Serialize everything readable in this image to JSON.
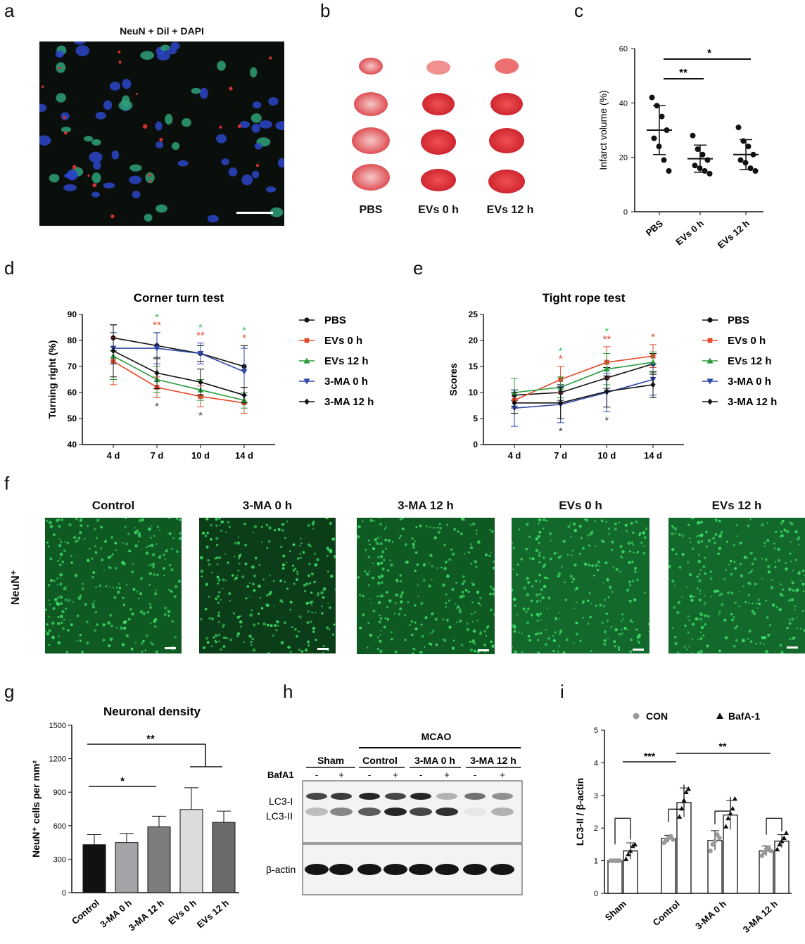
{
  "panels": {
    "a": {
      "label": "a",
      "title": "NeuN + Dil + DAPI"
    },
    "b": {
      "label": "b",
      "groups": [
        "PBS",
        "EVs 0 h",
        "EVs 12 h"
      ]
    },
    "c": {
      "label": "c"
    },
    "d": {
      "label": "d"
    },
    "e": {
      "label": "e"
    },
    "f": {
      "label": "f",
      "row_label": "NeuN⁺",
      "columns": [
        "Control",
        "3-MA 0 h",
        "3-MA 12 h",
        "EVs 0 h",
        "EVs 12 h"
      ]
    },
    "g": {
      "label": "g"
    },
    "h": {
      "label": "h",
      "mcao": "MCAO",
      "groups": [
        "Sham",
        "Control",
        "3-MA 0 h",
        "3-MA 12 h"
      ],
      "bafa1_label": "BafA1",
      "bafa1_signs": [
        "-",
        "+",
        "-",
        "+",
        "-",
        "+",
        "-",
        "+"
      ],
      "bands": [
        "LC3-I",
        "LC3-II",
        "β-actin"
      ]
    },
    "i": {
      "label": "i"
    }
  },
  "colors": {
    "PBS": "#111111",
    "EVs_0h": "#e2492a",
    "EVs_12h": "#2b9a3e",
    "MA_0h": "#2d47a6",
    "MA_12h": "#111111",
    "star_green": "#3bbf6e",
    "star_red": "#e2492a"
  },
  "chart_data": [
    {
      "id": "c",
      "type": "scatter",
      "ylabel": "Infarct volume (%)",
      "ylim": [
        0,
        60
      ],
      "yticks": [
        0,
        20,
        40,
        60
      ],
      "categories": [
        "PBS",
        "EVs 0 h",
        "EVs 12 h"
      ],
      "means": [
        30,
        19.5,
        21
      ],
      "sd": [
        9,
        5,
        5.5
      ],
      "points": [
        [
          42,
          39,
          35,
          30,
          27,
          24,
          19,
          15
        ],
        [
          28,
          23,
          21,
          19,
          17,
          16,
          15,
          14
        ],
        [
          31,
          26,
          24,
          21,
          19,
          18,
          16,
          15
        ]
      ],
      "annotations": [
        {
          "from": "PBS",
          "to": "EVs 0 h",
          "text": "**"
        },
        {
          "from": "PBS",
          "to": "EVs 12 h",
          "text": "*"
        }
      ]
    },
    {
      "id": "d",
      "type": "line",
      "title": "Corner turn test",
      "ylabel": "Turning right (%)",
      "ylim": [
        40,
        90
      ],
      "yticks": [
        40,
        50,
        60,
        70,
        80,
        90
      ],
      "x": [
        "4 d",
        "7 d",
        "10 d",
        "14 d"
      ],
      "series": [
        {
          "name": "PBS",
          "values": [
            81,
            78,
            75,
            70
          ],
          "err": [
            5,
            5,
            3,
            8
          ],
          "marker": "circle",
          "color": "#111111"
        },
        {
          "name": "EVs 0 h",
          "values": [
            72,
            62,
            58.5,
            56
          ],
          "err": [
            9,
            4,
            4,
            4
          ],
          "marker": "square",
          "color": "#e2492a"
        },
        {
          "name": "EVs 12 h",
          "values": [
            74,
            65,
            61,
            57
          ],
          "err": [
            9,
            5,
            4,
            3
          ],
          "marker": "triangle",
          "color": "#2b9a3e"
        },
        {
          "name": "3-MA 0 h",
          "values": [
            77,
            77,
            75,
            68
          ],
          "err": [
            6,
            6,
            4,
            9
          ],
          "marker": "tri-down",
          "color": "#2d47a6"
        },
        {
          "name": "3-MA 12 h",
          "values": [
            76,
            67.5,
            64,
            59
          ],
          "err": [
            10,
            6,
            5,
            3
          ],
          "marker": "diamond",
          "color": "#111111"
        }
      ],
      "annotations": [
        {
          "x": "7 d",
          "above": [
            {
              "text": "*",
              "color": "#3bbf6e"
            },
            {
              "text": "**",
              "color": "#e2492a"
            }
          ],
          "below": "*"
        },
        {
          "x": "10 d",
          "above": [
            {
              "text": "*",
              "color": "#3bbf6e"
            },
            {
              "text": "**",
              "color": "#e2492a"
            }
          ],
          "below": "*"
        },
        {
          "x": "14 d",
          "above": [
            {
              "text": "*",
              "color": "#3bbf6e"
            },
            {
              "text": "*",
              "color": "#e2492a"
            }
          ],
          "below": ""
        }
      ]
    },
    {
      "id": "e",
      "type": "line",
      "title": "Tight rope test",
      "ylabel": "Scores",
      "ylim": [
        0,
        25
      ],
      "yticks": [
        0,
        5,
        10,
        15,
        20,
        25
      ],
      "x": [
        "4 d",
        "7 d",
        "10 d",
        "14 d"
      ],
      "series": [
        {
          "name": "PBS",
          "values": [
            9.5,
            10,
            12.8,
            15.5
          ],
          "err": [
            1,
            1.5,
            2,
            2
          ],
          "marker": "circle",
          "color": "#111111"
        },
        {
          "name": "EVs 0 h",
          "values": [
            8.5,
            12.5,
            15.8,
            17
          ],
          "err": [
            1.5,
            2.5,
            3,
            2.2
          ],
          "marker": "square",
          "color": "#e2492a"
        },
        {
          "name": "EVs 12 h",
          "values": [
            10,
            11,
            14.5,
            15.8
          ],
          "err": [
            2.7,
            2,
            3,
            2
          ],
          "marker": "triangle",
          "color": "#2b9a3e"
        },
        {
          "name": "3-MA 0 h",
          "values": [
            7,
            7.7,
            10,
            12.5
          ],
          "err": [
            3.5,
            3.5,
            3.7,
            3
          ],
          "marker": "tri-down",
          "color": "#2d47a6"
        },
        {
          "name": "3-MA 12 h",
          "values": [
            8,
            8,
            10.2,
            11.5
          ],
          "err": [
            2,
            3,
            3,
            2.5
          ],
          "marker": "diamond",
          "color": "#111111"
        }
      ],
      "annotations": [
        {
          "x": "7 d",
          "above": [
            {
              "text": "*",
              "color": "#3bbf6e"
            },
            {
              "text": "*",
              "color": "#e2492a"
            }
          ],
          "below": "*"
        },
        {
          "x": "10 d",
          "above": [
            {
              "text": "*",
              "color": "#3bbf6e"
            },
            {
              "text": "**",
              "color": "#e2492a"
            }
          ],
          "below": "*"
        },
        {
          "x": "14 d",
          "above": [
            {
              "text": "*",
              "color": "#e2492a"
            }
          ],
          "below": ""
        }
      ]
    },
    {
      "id": "g",
      "type": "bar",
      "title": "Neuronal density",
      "ylabel": "NeuN⁺ cells per mm²",
      "ylim": [
        0,
        1500
      ],
      "yticks": [
        0,
        300,
        600,
        900,
        1200,
        1500
      ],
      "categories": [
        "Control",
        "3-MA 0 h",
        "3-MA 12 h",
        "EVs 0 h",
        "EVs 12 h"
      ],
      "values": [
        430,
        450,
        590,
        745,
        630
      ],
      "err": [
        90,
        80,
        95,
        195,
        100
      ],
      "bar_colors": [
        "#111111",
        "#a4a4a8",
        "#7d7d80",
        "#dcdcdc",
        "#6b6b6b"
      ],
      "annotations": [
        {
          "text": "*"
        },
        {
          "text": "**"
        }
      ]
    },
    {
      "id": "i",
      "type": "bar",
      "ylabel": "LC3-II / β-actin",
      "ylim": [
        0,
        5
      ],
      "yticks": [
        0,
        1,
        2,
        3,
        4,
        5
      ],
      "categories": [
        "Sham",
        "Control",
        "3-MA 0 h",
        "3-MA 12 h"
      ],
      "legend": [
        {
          "name": "CON",
          "marker": "circle"
        },
        {
          "name": "BafA-1",
          "marker": "triangle"
        }
      ],
      "series": [
        {
          "name": "CON",
          "values": [
            1,
            1.68,
            1.62,
            1.3
          ],
          "err": [
            0.03,
            0.1,
            0.3,
            0.15
          ],
          "points": [
            [
              1,
              1,
              1,
              1,
              1
            ],
            [
              1.55,
              1.62,
              1.7,
              1.75,
              1.65
            ],
            [
              1.3,
              1.5,
              1.6,
              1.8,
              1.7
            ],
            [
              1.15,
              1.25,
              1.35,
              1.4,
              1.3
            ]
          ]
        },
        {
          "name": "BafA-1",
          "values": [
            1.3,
            2.78,
            2.4,
            1.6
          ],
          "err": [
            0.25,
            0.45,
            0.45,
            0.2
          ],
          "points": [
            [
              1.05,
              1.2,
              1.3,
              1.45,
              1.5
            ],
            [
              2.35,
              2.6,
              2.85,
              3.1,
              3.2
            ],
            [
              2.05,
              2.3,
              2.45,
              2.6,
              2.9
            ],
            [
              1.35,
              1.5,
              1.6,
              1.7,
              1.85
            ]
          ]
        }
      ],
      "annotations": [
        {
          "text": "***"
        },
        {
          "text": "**"
        }
      ]
    }
  ]
}
